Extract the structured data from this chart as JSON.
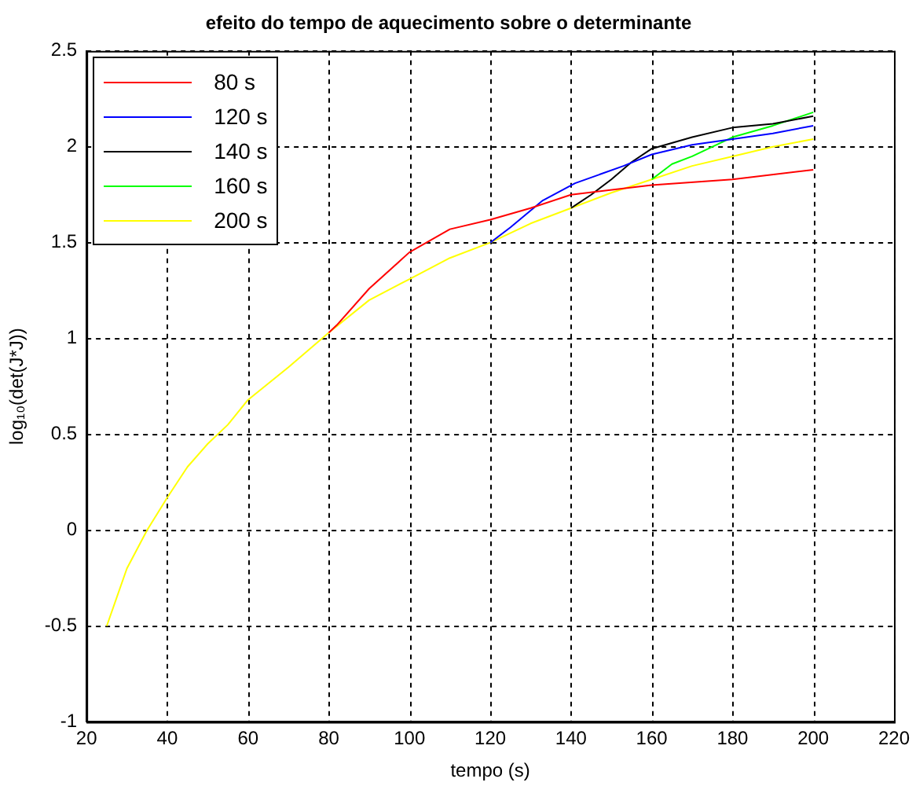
{
  "chart_data": {
    "type": "line",
    "title": "efeito do tempo de aquecimento sobre o determinante",
    "xlabel": "tempo (s)",
    "ylabel": "log₁₀(det(J*J))",
    "xlim": [
      20,
      220
    ],
    "xticks": [
      20,
      40,
      60,
      80,
      100,
      120,
      140,
      160,
      180,
      200,
      220
    ],
    "ylim": [
      -1,
      2.5
    ],
    "yticks": [
      -1,
      -0.5,
      0,
      0.5,
      1,
      1.5,
      2,
      2.5
    ],
    "grid": true,
    "legend": "top left",
    "line_style": "solid",
    "marker": "none",
    "series": [
      {
        "name": "80 s",
        "color": "#ff0000",
        "x": [
          80,
          82,
          90,
          100,
          110,
          120,
          130,
          140,
          160,
          180,
          200
        ],
        "values": [
          1.03,
          1.07,
          1.26,
          1.45,
          1.57,
          1.62,
          1.68,
          1.75,
          1.8,
          1.83,
          1.88
        ]
      },
      {
        "name": "120 s",
        "color": "#0000ff",
        "x": [
          120,
          125,
          133,
          141,
          153,
          160,
          170,
          180,
          190,
          200
        ],
        "values": [
          1.5,
          1.58,
          1.72,
          1.81,
          1.9,
          1.96,
          2.01,
          2.04,
          2.07,
          2.11
        ]
      },
      {
        "name": "140 s",
        "color": "#000000",
        "x": [
          140,
          145,
          150,
          155,
          160,
          170,
          180,
          190,
          200
        ],
        "values": [
          1.68,
          1.75,
          1.83,
          1.92,
          1.99,
          2.05,
          2.1,
          2.12,
          2.16
        ]
      },
      {
        "name": "160 s",
        "color": "#00ff00",
        "x": [
          160,
          165,
          170,
          180,
          190,
          200
        ],
        "values": [
          1.83,
          1.91,
          1.95,
          2.05,
          2.11,
          2.18
        ]
      },
      {
        "name": "200 s",
        "color": "#ffff00",
        "x": [
          25,
          30,
          35,
          40,
          45,
          50,
          55,
          60,
          70,
          80,
          90,
          100,
          110,
          120,
          130,
          140,
          150,
          160,
          170,
          180,
          190,
          200
        ],
        "values": [
          -0.5,
          -0.2,
          0.0,
          0.17,
          0.33,
          0.45,
          0.55,
          0.68,
          0.85,
          1.03,
          1.2,
          1.31,
          1.42,
          1.5,
          1.6,
          1.68,
          1.76,
          1.83,
          1.9,
          1.95,
          2.0,
          2.04
        ]
      }
    ]
  }
}
